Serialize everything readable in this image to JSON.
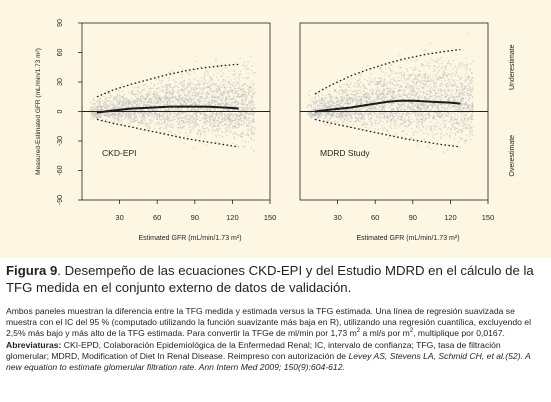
{
  "figure": {
    "chart_data": [
      {
        "type": "scatter",
        "panel_label": "CKD-EPI",
        "xlabel": "Estimated GFR (mL/min/1.73 m²)",
        "ylabel": "Measured-Estimated GFR (mL/min/1.73 m²)",
        "xlim": [
          0,
          150
        ],
        "ylim": [
          -90,
          90
        ],
        "xticks": [
          "30",
          "60",
          "90",
          "120",
          "150"
        ],
        "yticks": [
          "90",
          "60",
          "30",
          "0",
          "-30",
          "-60",
          "-90"
        ],
        "reference_line_y": 0,
        "series": [
          {
            "role": "smooth-median",
            "style": "solid",
            "x": [
              12,
              25,
              40,
              55,
              70,
              85,
              100,
              115,
              125
            ],
            "y": [
              -1,
              1,
              3,
              4,
              5,
              5,
              5,
              4,
              3
            ]
          },
          {
            "role": "upper-97.5-percentile",
            "style": "dashed",
            "x": [
              12,
              25,
              40,
              55,
              70,
              85,
              100,
              115,
              125
            ],
            "y": [
              15,
              22,
              28,
              33,
              38,
              42,
              45,
              47,
              48
            ]
          },
          {
            "role": "lower-2.5-percentile",
            "style": "dashed",
            "x": [
              12,
              25,
              40,
              55,
              70,
              85,
              100,
              115,
              125
            ],
            "y": [
              -8,
              -12,
              -16,
              -20,
              -24,
              -28,
              -31,
              -34,
              -36
            ]
          }
        ]
      },
      {
        "type": "scatter",
        "panel_label": "MDRD Study",
        "xlabel": "Estimated GFR (mL/min/1.73 m²)",
        "xlim": [
          0,
          150
        ],
        "ylim": [
          -90,
          90
        ],
        "xticks": [
          "30",
          "60",
          "90",
          "120",
          "150"
        ],
        "right_labels": [
          "Underestimate",
          "Overestimate"
        ],
        "reference_line_y": 0,
        "series": [
          {
            "role": "smooth-median",
            "style": "solid",
            "x": [
              12,
              25,
              40,
              55,
              70,
              80,
              90,
              105,
              120,
              128
            ],
            "y": [
              0,
              2,
              4,
              7,
              10,
              11,
              11,
              10,
              9,
              8
            ]
          },
          {
            "role": "upper-97.5-percentile",
            "style": "dashed",
            "x": [
              12,
              25,
              40,
              55,
              70,
              85,
              100,
              115,
              128
            ],
            "y": [
              18,
              27,
              36,
              43,
              49,
              54,
              58,
              61,
              63
            ]
          },
          {
            "role": "lower-2.5-percentile",
            "style": "dashed",
            "x": [
              12,
              25,
              40,
              55,
              70,
              85,
              100,
              115,
              128
            ],
            "y": [
              -8,
              -12,
              -16,
              -20,
              -24,
              -28,
              -31,
              -34,
              -36
            ]
          }
        ]
      }
    ]
  },
  "caption": {
    "label": "Figura 9",
    "title": ". Desempeño de las ecuaciones CKD-EPI y del Estudio MDRD en el cálculo de la TFG medida en el conjunto externo de datos de validación.",
    "body_1": "Ambos paneles muestran la diferencia entre la TFG medida y estimada versus la TFG estimada. Una línea de regresión suavizada se muestra con el IC del 95 % (computado utilizando la función suavizante más baja en R), utilizando una regresión cuantílica, excluyendo el 2,5% más bajo y más alto de la TFG estimada. Para convertir la TFGe de ml/min por 1,73 m",
    "sup_1": "2",
    "body_2": " a ml/s por m",
    "sup_2": "2",
    "body_3": ", multiplique por 0,0167. ",
    "abbr_label": "Abreviaturas:",
    "abbr_text": " CKI-EPD, Colaboración Epidemiológica de la Enfermedad Renal; IC, intervalo de confianza; TFG, tasa de filtración glomerular; MDRD, Modification of Diet In Renal Disease. Reimpreso con autorización de ",
    "citation": "Levey AS, Stevens LA, Schmid CH, et al.(52). A new equation to estimate glomerular filtration rate. Ann Intern Med 2009; 150(9):604-612."
  }
}
